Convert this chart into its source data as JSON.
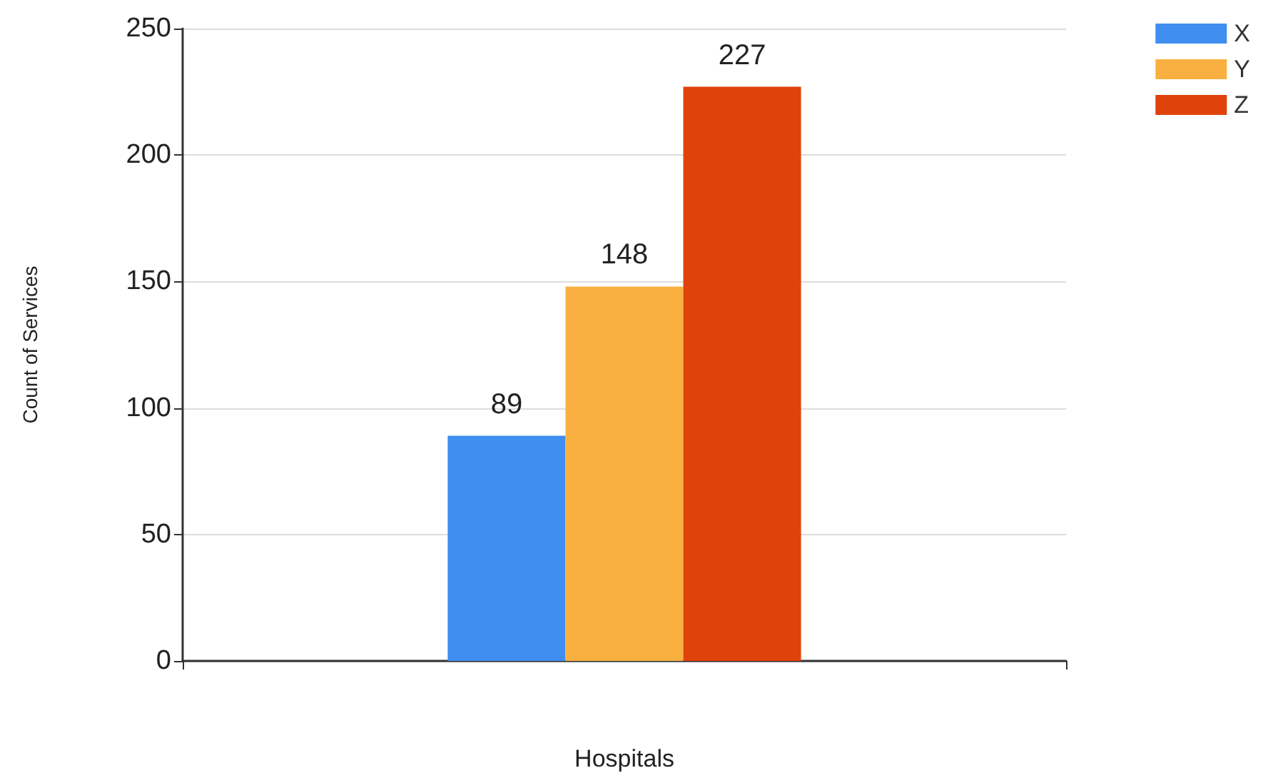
{
  "chart_data": {
    "type": "bar",
    "xlabel": "Hospitals",
    "ylabel": "Count of Services",
    "categories": [
      null
    ],
    "series": [
      {
        "name": "X",
        "color": "#3f8ef0",
        "values": [
          89
        ]
      },
      {
        "name": "Y",
        "color": "#f9b040",
        "values": [
          148
        ]
      },
      {
        "name": "Z",
        "color": "#e0420b",
        "values": [
          227
        ]
      }
    ],
    "ylim": [
      0,
      250
    ],
    "yticks": [
      0,
      50,
      100,
      150,
      200,
      250
    ],
    "grid": "y",
    "legend": "top right",
    "data_labels": true
  }
}
